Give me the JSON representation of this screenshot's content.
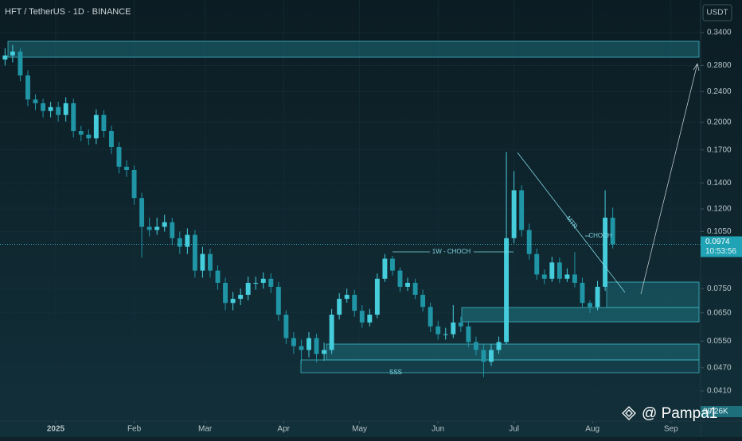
{
  "chart_data": {
    "type": "candlestick",
    "title": "HFT / TetherUS · 1D · BINANCE",
    "currency": "USDT",
    "log_scale": true,
    "grid": true,
    "up_color": "#46cddc",
    "down_color": "#1f95a6",
    "x": [
      -20,
      -17,
      -14,
      -11,
      -8,
      -5,
      -2,
      1,
      4,
      7,
      10,
      13,
      16,
      19,
      22,
      25,
      28,
      31,
      34,
      37,
      40,
      43,
      46,
      49,
      52,
      55,
      58,
      61,
      64,
      67,
      70,
      73,
      76,
      79,
      82,
      85,
      88,
      91,
      94,
      97,
      100,
      103,
      106,
      109,
      112,
      115,
      118,
      121,
      124,
      127,
      130,
      133,
      136,
      139,
      142,
      145,
      148,
      151,
      154,
      157,
      160,
      163,
      166,
      169,
      172,
      175,
      178,
      181,
      184,
      187,
      190,
      193,
      196,
      199,
      202,
      205,
      208,
      211,
      214,
      217,
      220
    ],
    "open": [
      0.29,
      0.297,
      0.304,
      0.264,
      0.229,
      0.224,
      0.214,
      0.219,
      0.209,
      0.224,
      0.19,
      0.186,
      0.182,
      0.209,
      0.19,
      0.173,
      0.154,
      0.151,
      0.128,
      0.108,
      0.106,
      0.108,
      0.111,
      0.101,
      0.096,
      0.103,
      0.0834,
      0.092,
      0.0834,
      0.0776,
      0.0689,
      0.0706,
      0.0723,
      0.0776,
      0.0776,
      0.0795,
      0.0758,
      0.0643,
      0.056,
      0.0534,
      0.0522,
      0.056,
      0.051,
      0.0522,
      0.0643,
      0.0706,
      0.0723,
      0.0658,
      0.0614,
      0.0643,
      0.0795,
      0.0895,
      0.0834,
      0.0758,
      0.0776,
      0.0723,
      0.0673,
      0.06,
      0.0573,
      0.0573,
      0.0614,
      0.06,
      0.0547,
      0.0522,
      0.0487,
      0.0522,
      0.0547,
      0.101,
      0.134,
      0.106,
      0.092,
      0.0815,
      0.0795,
      0.0875,
      0.0795,
      0.0815,
      0.0776,
      0.0689,
      0.0673,
      0.0758,
      0.114
    ],
    "high": [
      0.31,
      0.316,
      0.31,
      0.272,
      0.236,
      0.23,
      0.226,
      0.226,
      0.232,
      0.23,
      0.196,
      0.192,
      0.216,
      0.215,
      0.196,
      0.178,
      0.16,
      0.155,
      0.132,
      0.114,
      0.114,
      0.116,
      0.114,
      0.105,
      0.107,
      0.106,
      0.096,
      0.095,
      0.086,
      0.08,
      0.0735,
      0.075,
      0.0805,
      0.0805,
      0.0825,
      0.082,
      0.078,
      0.066,
      0.058,
      0.0555,
      0.058,
      0.0575,
      0.0545,
      0.0665,
      0.073,
      0.075,
      0.0745,
      0.068,
      0.0665,
      0.082,
      0.092,
      0.091,
      0.085,
      0.08,
      0.0795,
      0.0745,
      0.069,
      0.062,
      0.0595,
      0.068,
      0.0635,
      0.062,
      0.0565,
      0.054,
      0.054,
      0.0565,
      0.168,
      0.15,
      0.138,
      0.11,
      0.095,
      0.084,
      0.0905,
      0.09,
      0.0845,
      0.093,
      0.08,
      0.07,
      0.0785,
      0.134,
      0.121
    ],
    "low": [
      0.28,
      0.285,
      0.255,
      0.22,
      0.215,
      0.206,
      0.206,
      0.201,
      0.201,
      0.183,
      0.179,
      0.175,
      0.176,
      0.183,
      0.166,
      0.148,
      0.145,
      0.123,
      0.09,
      0.102,
      0.103,
      0.105,
      0.097,
      0.092,
      0.092,
      0.08,
      0.08,
      0.08,
      0.0745,
      0.066,
      0.066,
      0.068,
      0.07,
      0.0745,
      0.075,
      0.073,
      0.062,
      0.054,
      0.051,
      0.048,
      0.05,
      0.0485,
      0.049,
      0.051,
      0.0625,
      0.069,
      0.0635,
      0.0595,
      0.06,
      0.063,
      0.078,
      0.081,
      0.0735,
      0.074,
      0.0705,
      0.0655,
      0.058,
      0.0555,
      0.0555,
      0.056,
      0.058,
      0.053,
      0.0505,
      0.0445,
      0.0475,
      0.051,
      0.054,
      0.098,
      0.102,
      0.089,
      0.079,
      0.077,
      0.078,
      0.0775,
      0.078,
      0.0755,
      0.067,
      0.065,
      0.066,
      0.074,
      0.095
    ],
    "close": [
      0.297,
      0.304,
      0.264,
      0.229,
      0.224,
      0.214,
      0.219,
      0.209,
      0.224,
      0.19,
      0.186,
      0.182,
      0.209,
      0.19,
      0.173,
      0.154,
      0.151,
      0.128,
      0.108,
      0.106,
      0.108,
      0.111,
      0.101,
      0.096,
      0.103,
      0.0834,
      0.092,
      0.0834,
      0.0776,
      0.0689,
      0.0706,
      0.0723,
      0.0776,
      0.0776,
      0.0795,
      0.0758,
      0.0643,
      0.056,
      0.0534,
      0.0522,
      0.056,
      0.051,
      0.0522,
      0.0643,
      0.0706,
      0.0723,
      0.0658,
      0.0614,
      0.0643,
      0.0795,
      0.0895,
      0.0834,
      0.0758,
      0.0776,
      0.0723,
      0.0673,
      0.06,
      0.0573,
      0.0573,
      0.0614,
      0.06,
      0.0547,
      0.0522,
      0.0487,
      0.0522,
      0.0547,
      0.101,
      0.134,
      0.106,
      0.092,
      0.0815,
      0.0795,
      0.0875,
      0.0795,
      0.0815,
      0.0776,
      0.0689,
      0.0673,
      0.0758,
      0.114,
      0.0974
    ],
    "xlim": [
      -22,
      254.7
    ],
    "xticks": [
      {
        "value": 0,
        "label": "2025"
      },
      {
        "value": 31,
        "label": "Feb"
      },
      {
        "value": 59,
        "label": "Mar"
      },
      {
        "value": 90,
        "label": "Apr"
      },
      {
        "value": 120,
        "label": "May"
      },
      {
        "value": 151,
        "label": "Jun"
      },
      {
        "value": 181,
        "label": "Jul"
      },
      {
        "value": 212,
        "label": "Aug"
      },
      {
        "value": 243,
        "label": "Sep"
      }
    ],
    "ylim": [
      0.0343,
      0.412
    ],
    "yticks": [
      {
        "value": 0.34,
        "label": "0.3400"
      },
      {
        "value": 0.28,
        "label": "0.2800"
      },
      {
        "value": 0.24,
        "label": "0.2400"
      },
      {
        "value": 0.2,
        "label": "0.2000"
      },
      {
        "value": 0.17,
        "label": "0.1700"
      },
      {
        "value": 0.14,
        "label": "0.1400"
      },
      {
        "value": 0.12,
        "label": "0.1200"
      },
      {
        "value": 0.105,
        "label": "0.1050"
      },
      {
        "value": 0.075,
        "label": "0.0750"
      },
      {
        "value": 0.065,
        "label": "0.0650"
      },
      {
        "value": 0.055,
        "label": "0.0550"
      },
      {
        "value": 0.047,
        "label": "0.0470"
      },
      {
        "value": 0.041,
        "label": "0.0410"
      }
    ],
    "last_price": {
      "value": 0.0974,
      "countdown": "10:53:56"
    },
    "volume_label": "39.26K",
    "annotations": {
      "weekly_choch": "1W - CHOCH",
      "choch": "CHOCH",
      "mtr": "MTR",
      "sss": "SSS"
    }
  },
  "watermark": "@ Pampa1"
}
